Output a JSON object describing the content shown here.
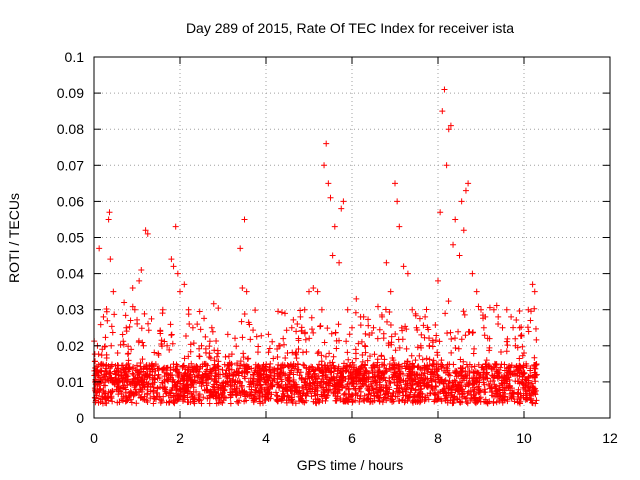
{
  "chart_data": {
    "type": "scatter",
    "title": "Day 289 of 2015, Rate Of TEC Index for receiver ista",
    "xlabel": "GPS time / hours",
    "ylabel": "ROTI / TECUs",
    "xlim": [
      0,
      12
    ],
    "ylim": [
      0,
      0.1
    ],
    "x_ticks": [
      0,
      2,
      4,
      6,
      8,
      10,
      12
    ],
    "x_tick_labels": [
      "0",
      "2",
      "4",
      "6",
      "8",
      "10",
      "12"
    ],
    "y_ticks": [
      0,
      0.01,
      0.02,
      0.03,
      0.04,
      0.05,
      0.06,
      0.07,
      0.08,
      0.09,
      0.1
    ],
    "y_tick_labels": [
      "0",
      "0.01",
      "0.02",
      "0.03",
      "0.04",
      "0.05",
      "0.06",
      "0.07",
      "0.08",
      "0.09",
      "0.1"
    ],
    "grid": true,
    "marker": "+",
    "marker_color": "#ff0000",
    "data_range_x": [
      0,
      10.3
    ],
    "series": [
      {
        "name": "ROTI",
        "x": [
          0.05,
          0.08,
          0.12,
          0.18,
          0.22,
          0.3,
          0.34,
          0.36,
          0.38,
          0.4,
          0.45,
          0.5,
          0.55,
          0.6,
          0.65,
          0.7,
          0.75,
          0.8,
          0.85,
          0.9,
          0.95,
          1.0,
          1.05,
          1.1,
          1.15,
          1.2,
          1.25,
          1.3,
          1.35,
          1.4,
          1.5,
          1.6,
          1.7,
          1.8,
          1.85,
          1.9,
          1.95,
          2.0,
          2.1,
          2.2,
          2.3,
          2.4,
          2.5,
          2.6,
          2.7,
          2.8,
          2.9,
          3.0,
          3.1,
          3.2,
          3.3,
          3.4,
          3.45,
          3.5,
          3.55,
          3.6,
          3.7,
          3.8,
          3.9,
          4.0,
          4.1,
          4.2,
          4.3,
          4.4,
          4.5,
          4.6,
          4.7,
          4.8,
          4.9,
          5.0,
          5.1,
          5.2,
          5.3,
          5.35,
          5.4,
          5.45,
          5.5,
          5.55,
          5.6,
          5.7,
          5.75,
          5.8,
          5.9,
          6.0,
          6.1,
          6.2,
          6.3,
          6.4,
          6.5,
          6.6,
          6.7,
          6.8,
          6.9,
          7.0,
          7.05,
          7.1,
          7.2,
          7.3,
          7.4,
          7.5,
          7.6,
          7.7,
          7.8,
          7.9,
          8.0,
          8.05,
          8.1,
          8.15,
          8.2,
          8.25,
          8.3,
          8.35,
          8.4,
          8.5,
          8.55,
          8.6,
          8.65,
          8.7,
          8.8,
          8.9,
          9.0,
          9.1,
          9.2,
          9.3,
          9.4,
          9.5,
          9.6,
          9.7,
          9.8,
          9.9,
          10.0,
          10.05,
          10.1,
          10.15,
          10.2,
          10.25,
          10.3
        ],
        "y": [
          0.007,
          0.02,
          0.047,
          0.015,
          0.028,
          0.013,
          0.055,
          0.057,
          0.044,
          0.02,
          0.035,
          0.012,
          0.018,
          0.01,
          0.011,
          0.032,
          0.025,
          0.015,
          0.027,
          0.036,
          0.03,
          0.01,
          0.038,
          0.041,
          0.02,
          0.052,
          0.051,
          0.012,
          0.015,
          0.011,
          0.012,
          0.03,
          0.02,
          0.044,
          0.042,
          0.053,
          0.04,
          0.035,
          0.037,
          0.03,
          0.025,
          0.026,
          0.02,
          0.015,
          0.013,
          0.016,
          0.011,
          0.012,
          0.01,
          0.015,
          0.012,
          0.047,
          0.036,
          0.055,
          0.035,
          0.01,
          0.012,
          0.009,
          0.011,
          0.012,
          0.015,
          0.013,
          0.02,
          0.022,
          0.018,
          0.025,
          0.024,
          0.028,
          0.03,
          0.035,
          0.036,
          0.035,
          0.03,
          0.07,
          0.076,
          0.065,
          0.061,
          0.045,
          0.053,
          0.043,
          0.058,
          0.06,
          0.03,
          0.025,
          0.033,
          0.028,
          0.02,
          0.023,
          0.025,
          0.022,
          0.028,
          0.043,
          0.035,
          0.065,
          0.06,
          0.053,
          0.042,
          0.04,
          0.03,
          0.025,
          0.02,
          0.028,
          0.02,
          0.015,
          0.038,
          0.057,
          0.085,
          0.091,
          0.07,
          0.08,
          0.081,
          0.048,
          0.055,
          0.045,
          0.06,
          0.052,
          0.063,
          0.065,
          0.04,
          0.035,
          0.03,
          0.028,
          0.022,
          0.03,
          0.028,
          0.025,
          0.03,
          0.028,
          0.02,
          0.025,
          0.018,
          0.015,
          0.03,
          0.027,
          0.037,
          0.035,
          0.012
        ]
      }
    ]
  }
}
